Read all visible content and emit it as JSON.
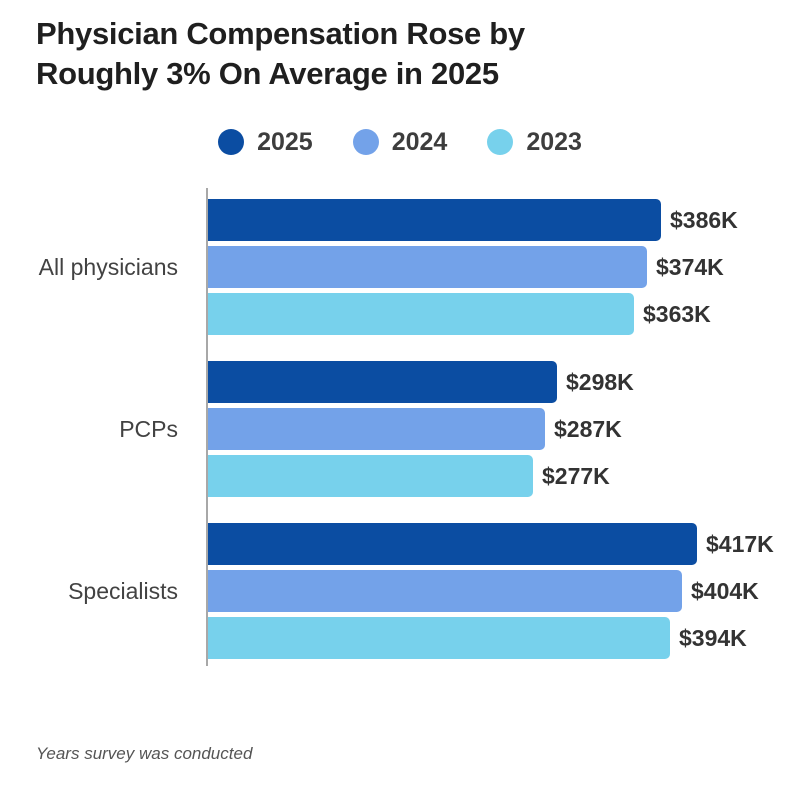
{
  "title_lines": [
    "Physician Compensation Rose by",
    "Roughly 3% On Average in 2025"
  ],
  "legend": [
    {
      "label": "2025",
      "color": "#0b4da2"
    },
    {
      "label": "2024",
      "color": "#73a2e9"
    },
    {
      "label": "2023",
      "color": "#77d1ec"
    }
  ],
  "footnote": "Years survey was conducted",
  "chart_data": {
    "type": "bar",
    "orientation": "horizontal",
    "title": "Physician Compensation Rose by Roughly 3% On Average in 2025",
    "categories": [
      "All physicians",
      "PCPs",
      "Specialists"
    ],
    "series": [
      {
        "name": "2025",
        "color": "#0b4da2",
        "values": [
          386,
          298,
          417
        ],
        "labels": [
          "$386K",
          "$298K",
          "$417K"
        ]
      },
      {
        "name": "2024",
        "color": "#73a2e9",
        "values": [
          374,
          287,
          404
        ],
        "labels": [
          "$374K",
          "$287K",
          "$404K"
        ]
      },
      {
        "name": "2023",
        "color": "#77d1ec",
        "values": [
          363,
          277,
          394
        ],
        "labels": [
          "$363K",
          "$277K",
          "$394K"
        ]
      }
    ],
    "unit": "USD thousands per year",
    "value_prefix": "$",
    "value_suffix": "K",
    "xlabel": "",
    "ylabel": "",
    "xlim": [
      0,
      440
    ],
    "grid": false,
    "legend_position": "top",
    "caption": "Years survey was conducted"
  }
}
